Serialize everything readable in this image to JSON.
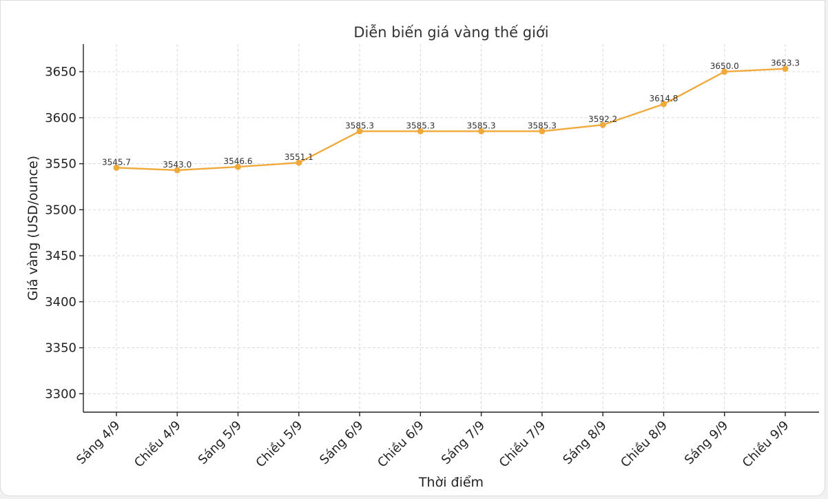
{
  "chart_data": {
    "type": "line",
    "title": "Diễn biến giá vàng thế giới",
    "xlabel": "Thời điểm",
    "ylabel": "Giá vàng (USD/ounce)",
    "categories": [
      "Sáng 4/9",
      "Chiều 4/9",
      "Sáng 5/9",
      "Chiều 5/9",
      "Sáng 6/9",
      "Chiều 6/9",
      "Sáng 7/9",
      "Chiều 7/9",
      "Sáng 8/9",
      "Chiều 8/9",
      "Sáng 9/9",
      "Chiều 9/9"
    ],
    "values": [
      3545.7,
      3543.0,
      3546.6,
      3551.1,
      3585.3,
      3585.3,
      3585.3,
      3585.3,
      3592.2,
      3614.8,
      3650.0,
      3653.3
    ],
    "data_labels": [
      "3545.7",
      "3543.0",
      "3546.6",
      "3551.1",
      "3585.3",
      "3585.3",
      "3585.3",
      "3585.3",
      "3592.2",
      "3614.8",
      "3650.0",
      "3653.3"
    ],
    "yticks": [
      3300,
      3350,
      3400,
      3450,
      3500,
      3550,
      3600,
      3650
    ],
    "ylim": [
      3280,
      3680
    ],
    "grid": true,
    "line_color": "#f0a93b"
  }
}
